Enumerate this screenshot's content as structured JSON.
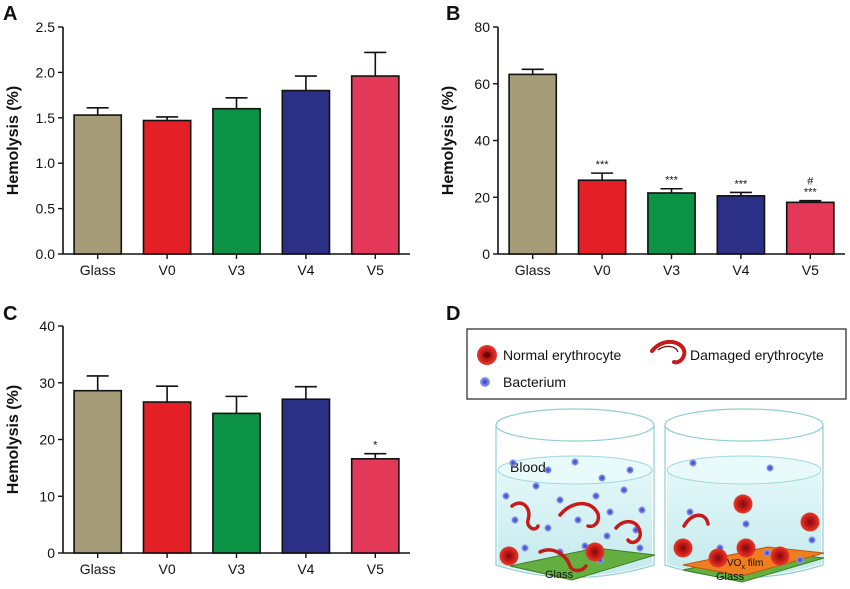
{
  "colors": {
    "Glass": "#a79c78",
    "V0": "#e41f26",
    "V3": "#0c9346",
    "V4": "#2c2f86",
    "V5": "#e33858",
    "axis": "#111111",
    "film": "#f07d1e",
    "glass_plate": "#5fa83a",
    "blood": "#c9eef0",
    "bacterium": "#7482e6",
    "erythrocyte": "#c81a1a"
  },
  "chart_data": [
    {
      "panel": "A",
      "type": "bar",
      "categories": [
        "Glass",
        "V0",
        "V3",
        "V4",
        "V5"
      ],
      "values": [
        1.53,
        1.47,
        1.6,
        1.8,
        1.96
      ],
      "errors": [
        0.08,
        0.04,
        0.12,
        0.16,
        0.26
      ],
      "annotations": [
        "",
        "",
        "",
        "",
        ""
      ],
      "ylabel": "Hemolysis (%)",
      "ylim": [
        0,
        2.5
      ],
      "yticks": [
        "0.0",
        "0.5",
        "1.0",
        "1.5",
        "2.0",
        "2.5"
      ]
    },
    {
      "panel": "B",
      "type": "bar",
      "categories": [
        "Glass",
        "V0",
        "V3",
        "V4",
        "V5"
      ],
      "values": [
        63.3,
        26.0,
        21.5,
        20.5,
        18.2
      ],
      "errors": [
        1.8,
        2.5,
        1.5,
        1.2,
        0.6
      ],
      "annotations": [
        "",
        "***",
        "***",
        "***",
        "#\n***"
      ],
      "ylabel": "Hemolysis (%)",
      "ylim": [
        0,
        80
      ],
      "yticks": [
        "0",
        "20",
        "40",
        "60",
        "80"
      ]
    },
    {
      "panel": "C",
      "type": "bar",
      "categories": [
        "Glass",
        "V0",
        "V3",
        "V4",
        "V5"
      ],
      "values": [
        28.6,
        26.6,
        24.6,
        27.1,
        16.6
      ],
      "errors": [
        2.6,
        2.8,
        3.0,
        2.2,
        0.9
      ],
      "annotations": [
        "",
        "",
        "",
        "",
        "*"
      ],
      "ylabel": "Hemolysis (%)",
      "ylim": [
        0,
        40
      ],
      "yticks": [
        "0",
        "10",
        "20",
        "30",
        "40"
      ]
    }
  ],
  "diagram": {
    "panel": "D",
    "legend": {
      "normal": "Normal erythrocyte",
      "damaged": "Damaged erythrocyte",
      "bacterium": "Bacterium"
    },
    "blood_label": "Blood",
    "glass_label": "Glass",
    "film_label_main": "VO",
    "film_label_sub": "x",
    "film_label_tail": " film",
    "glass_label_right": "Glass"
  }
}
